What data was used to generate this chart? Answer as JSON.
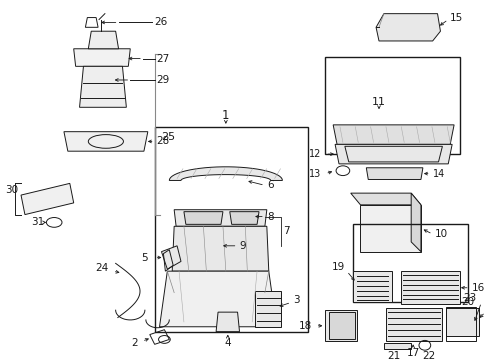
{
  "bg_color": "#ffffff",
  "lc": "#1a1a1a",
  "fig_w": 4.89,
  "fig_h": 3.6,
  "dpi": 100,
  "xmin": 0,
  "xmax": 489,
  "ymin": 0,
  "ymax": 360
}
